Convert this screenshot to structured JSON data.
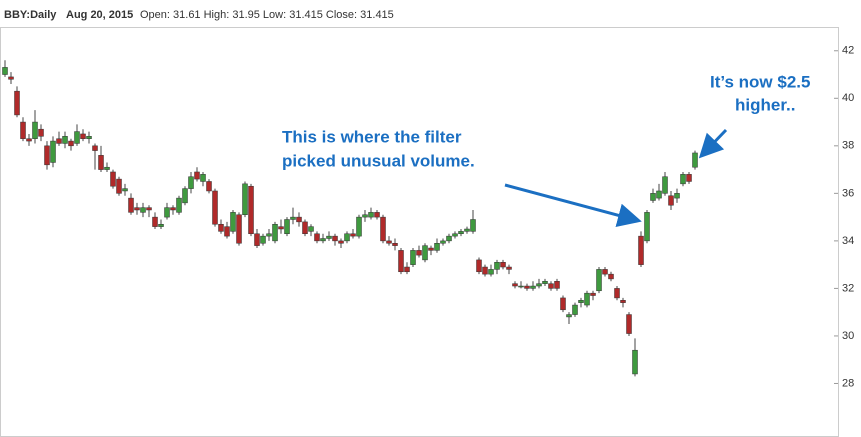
{
  "chart_data": {
    "type": "candlestick",
    "title": "BBY:Daily",
    "date": "Aug 20, 2015",
    "info": "Open: 31.61 High: 31.95 Low: 31.415 Close: 31.415",
    "annotations": [
      "This is where the filter",
      "picked unusual volume.",
      "It’s now $2.5",
      "higher.."
    ],
    "up_color": "#3f9a3f",
    "down_color": "#b02a2a",
    "ylim": [
      26,
      43
    ],
    "yticks": [
      28,
      30,
      32,
      34,
      36,
      38,
      40,
      42
    ],
    "open": [
      41.0,
      40.9,
      40.3,
      39.0,
      38.3,
      38.3,
      38.7,
      38.0,
      37.3,
      38.3,
      38.1,
      38.2,
      38.1,
      38.5,
      38.3,
      38.0,
      37.6,
      37.0,
      36.9,
      36.6,
      36.1,
      35.8,
      35.4,
      35.2,
      35.4,
      35.0,
      34.6,
      35.0,
      35.4,
      35.2,
      35.6,
      36.2,
      36.9,
      36.5,
      36.5,
      36.1,
      34.7,
      34.6,
      34.4,
      35.1,
      35.1,
      36.3,
      34.3,
      33.9,
      34.2,
      34.0,
      34.6,
      34.3,
      34.9,
      35.0,
      34.8,
      34.4,
      34.3,
      34.0,
      34.1,
      34.2,
      34.0,
      34.0,
      34.3,
      34.2,
      35.0,
      35.0,
      35.2,
      35.0,
      34.0,
      33.9,
      33.6,
      32.9,
      33.0,
      33.6,
      33.2,
      33.7,
      33.6,
      33.9,
      34.0,
      34.2,
      34.3,
      34.4,
      34.4,
      33.2,
      32.9,
      32.6,
      32.8,
      33.1,
      32.9,
      32.2,
      32.1,
      32.1,
      32.0,
      32.1,
      32.2,
      32.2,
      32.3,
      31.6,
      30.8,
      30.9,
      31.4,
      31.3,
      31.8,
      31.9,
      32.8,
      32.6,
      32.0,
      31.5,
      30.9,
      28.4,
      34.2,
      34.0,
      35.7,
      35.8,
      36.0,
      35.9,
      35.8,
      36.4,
      36.8,
      37.1
    ],
    "high": [
      41.6,
      41.1,
      40.5,
      39.2,
      38.5,
      39.5,
      38.9,
      38.2,
      38.4,
      38.6,
      38.6,
      38.3,
      38.9,
      38.7,
      38.6,
      38.1,
      38.0,
      37.3,
      37.0,
      36.7,
      36.4,
      36.0,
      35.6,
      35.6,
      35.5,
      35.2,
      34.9,
      35.6,
      35.5,
      35.9,
      36.3,
      36.9,
      37.1,
      36.9,
      36.6,
      36.2,
      34.9,
      34.8,
      35.3,
      35.2,
      36.5,
      36.4,
      34.5,
      34.3,
      34.5,
      34.8,
      34.9,
      35.0,
      35.4,
      35.2,
      34.9,
      34.7,
      34.4,
      34.3,
      34.4,
      34.3,
      34.1,
      34.4,
      34.5,
      35.1,
      35.3,
      35.4,
      35.3,
      35.1,
      34.2,
      34.1,
      33.7,
      33.1,
      33.7,
      33.8,
      33.9,
      33.8,
      34.1,
      34.1,
      34.3,
      34.4,
      34.5,
      34.6,
      35.3,
      33.3,
      33.0,
      33.0,
      33.2,
      33.2,
      33.0,
      32.3,
      32.3,
      32.2,
      32.3,
      32.4,
      32.4,
      32.3,
      32.4,
      31.7,
      31.0,
      31.4,
      31.6,
      31.9,
      31.9,
      32.9,
      32.9,
      32.7,
      32.1,
      31.6,
      31.0,
      29.9,
      34.4,
      35.3,
      36.2,
      36.4,
      36.9,
      36.1,
      36.2,
      36.9,
      36.9,
      37.8
    ],
    "low": [
      40.9,
      40.6,
      39.2,
      38.2,
      38.0,
      38.1,
      38.2,
      37.0,
      37.1,
      38.0,
      37.9,
      37.8,
      38.0,
      38.2,
      38.1,
      37.0,
      36.9,
      36.9,
      36.2,
      35.9,
      35.9,
      35.1,
      35.1,
      35.0,
      35.0,
      34.5,
      34.5,
      34.9,
      35.1,
      35.1,
      35.5,
      36.0,
      36.5,
      36.3,
      36.0,
      34.6,
      34.3,
      34.1,
      34.3,
      33.8,
      35.0,
      34.2,
      33.7,
      33.8,
      34.0,
      33.9,
      34.3,
      34.2,
      34.7,
      34.6,
      34.2,
      34.2,
      33.9,
      33.9,
      34.0,
      33.8,
      33.7,
      33.9,
      34.1,
      34.1,
      34.8,
      34.9,
      34.9,
      33.9,
      33.8,
      33.6,
      32.6,
      32.6,
      32.9,
      33.3,
      33.1,
      33.4,
      33.5,
      33.8,
      33.9,
      34.1,
      34.2,
      34.3,
      34.3,
      32.6,
      32.5,
      32.5,
      32.6,
      32.8,
      32.6,
      32.0,
      32.0,
      31.9,
      31.9,
      32.0,
      32.1,
      31.9,
      31.9,
      31.0,
      30.5,
      30.8,
      31.2,
      31.2,
      31.5,
      31.8,
      32.5,
      32.3,
      31.5,
      31.2,
      30.0,
      28.3,
      32.9,
      33.9,
      35.6,
      35.7,
      35.9,
      35.3,
      35.6,
      36.3,
      36.4,
      37.0
    ],
    "close": [
      41.3,
      40.8,
      39.3,
      38.3,
      38.2,
      39.0,
      38.4,
      37.2,
      38.2,
      38.1,
      38.4,
      38.0,
      38.6,
      38.3,
      38.4,
      37.8,
      37.0,
      37.1,
      36.3,
      36.0,
      36.2,
      35.2,
      35.3,
      35.4,
      35.3,
      34.6,
      34.7,
      35.4,
      35.3,
      35.8,
      36.2,
      36.7,
      36.6,
      36.8,
      36.1,
      34.7,
      34.4,
      34.2,
      35.2,
      33.9,
      36.4,
      34.3,
      33.8,
      34.2,
      34.3,
      34.7,
      34.5,
      34.9,
      35.0,
      34.8,
      34.3,
      34.6,
      34.0,
      34.1,
      34.2,
      34.0,
      33.9,
      34.3,
      34.2,
      35.0,
      35.1,
      35.2,
      35.0,
      34.0,
      33.9,
      33.8,
      32.7,
      32.7,
      33.6,
      33.4,
      33.8,
      33.6,
      33.9,
      34.0,
      34.2,
      34.3,
      34.4,
      34.5,
      34.9,
      32.7,
      32.6,
      32.8,
      33.1,
      32.9,
      32.8,
      32.1,
      32.1,
      32.0,
      32.1,
      32.2,
      32.3,
      32.0,
      32.0,
      31.1,
      30.9,
      31.3,
      31.5,
      31.8,
      31.7,
      32.8,
      32.6,
      32.4,
      31.6,
      31.4,
      30.1,
      29.4,
      33.0,
      35.2,
      36.0,
      36.1,
      36.7,
      35.5,
      36.0,
      36.8,
      36.5,
      37.7
    ]
  }
}
